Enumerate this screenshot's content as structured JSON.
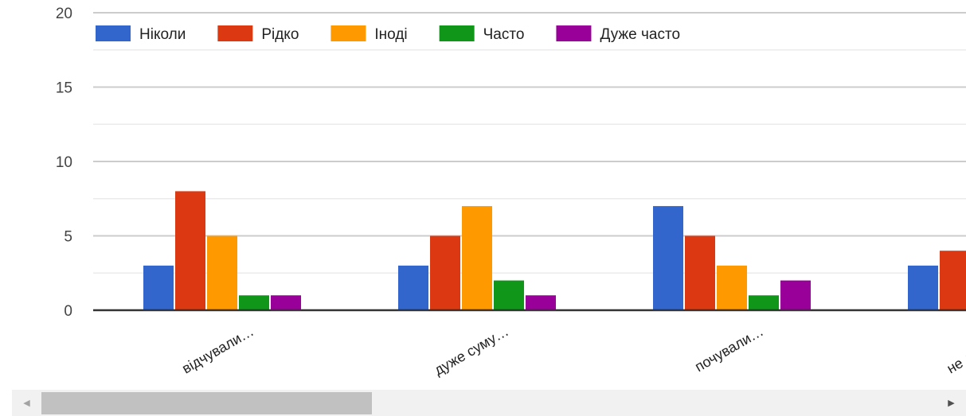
{
  "chart_data": {
    "type": "bar",
    "categories": [
      "відчували…",
      "дуже суму…",
      "почували…",
      "не лягали…"
    ],
    "series": [
      {
        "name": "Ніколи",
        "color": "#3366cc",
        "values": [
          3,
          3,
          7,
          3
        ]
      },
      {
        "name": "Рідко",
        "color": "#dc3912",
        "values": [
          8,
          5,
          5,
          4
        ]
      },
      {
        "name": "Іноді",
        "color": "#ff9900",
        "values": [
          5,
          7,
          3,
          null
        ]
      },
      {
        "name": "Часто",
        "color": "#109618",
        "values": [
          1,
          2,
          1,
          null
        ]
      },
      {
        "name": "Дуже часто",
        "color": "#990099",
        "values": [
          1,
          1,
          2,
          null
        ]
      }
    ],
    "ylim": [
      0,
      20
    ],
    "yticks": [
      "0",
      "5",
      "10",
      "15",
      "20"
    ],
    "legend_position": "top-left",
    "grid": true
  },
  "scrollbar": {
    "left_icon": "arrow-left-icon",
    "right_icon": "arrow-right-icon",
    "left_glyph": "◀",
    "right_glyph": "▶"
  }
}
